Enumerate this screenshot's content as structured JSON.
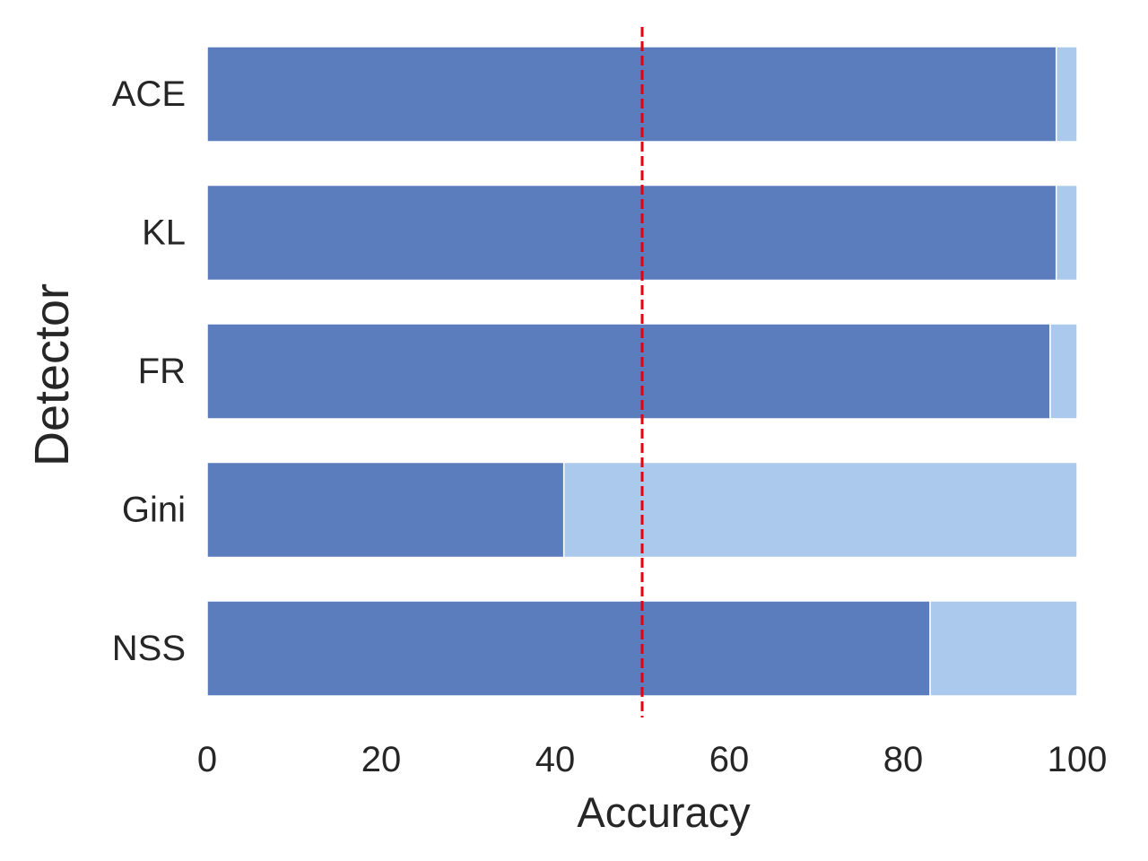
{
  "chart_data": {
    "type": "bar",
    "orientation": "horizontal",
    "stacked": true,
    "title": "",
    "xlabel": "Accuracy",
    "ylabel": "Detector",
    "categories": [
      "ACE",
      "KL",
      "FR",
      "Gini",
      "NSS"
    ],
    "series": [
      {
        "values": [
          97.6,
          97.6,
          96.9,
          41.0,
          83.1
        ],
        "color": "#5b7dbe"
      },
      {
        "values": [
          2.4,
          2.4,
          3.1,
          59.0,
          16.9
        ],
        "color": "#abc9ec"
      }
    ],
    "xlim": [
      0,
      100
    ],
    "xticks": [
      "0",
      "20",
      "40",
      "60",
      "80",
      "100"
    ],
    "reference_line": {
      "x": 50,
      "color": "#e8000b",
      "style": "dashed"
    },
    "grid": false
  }
}
